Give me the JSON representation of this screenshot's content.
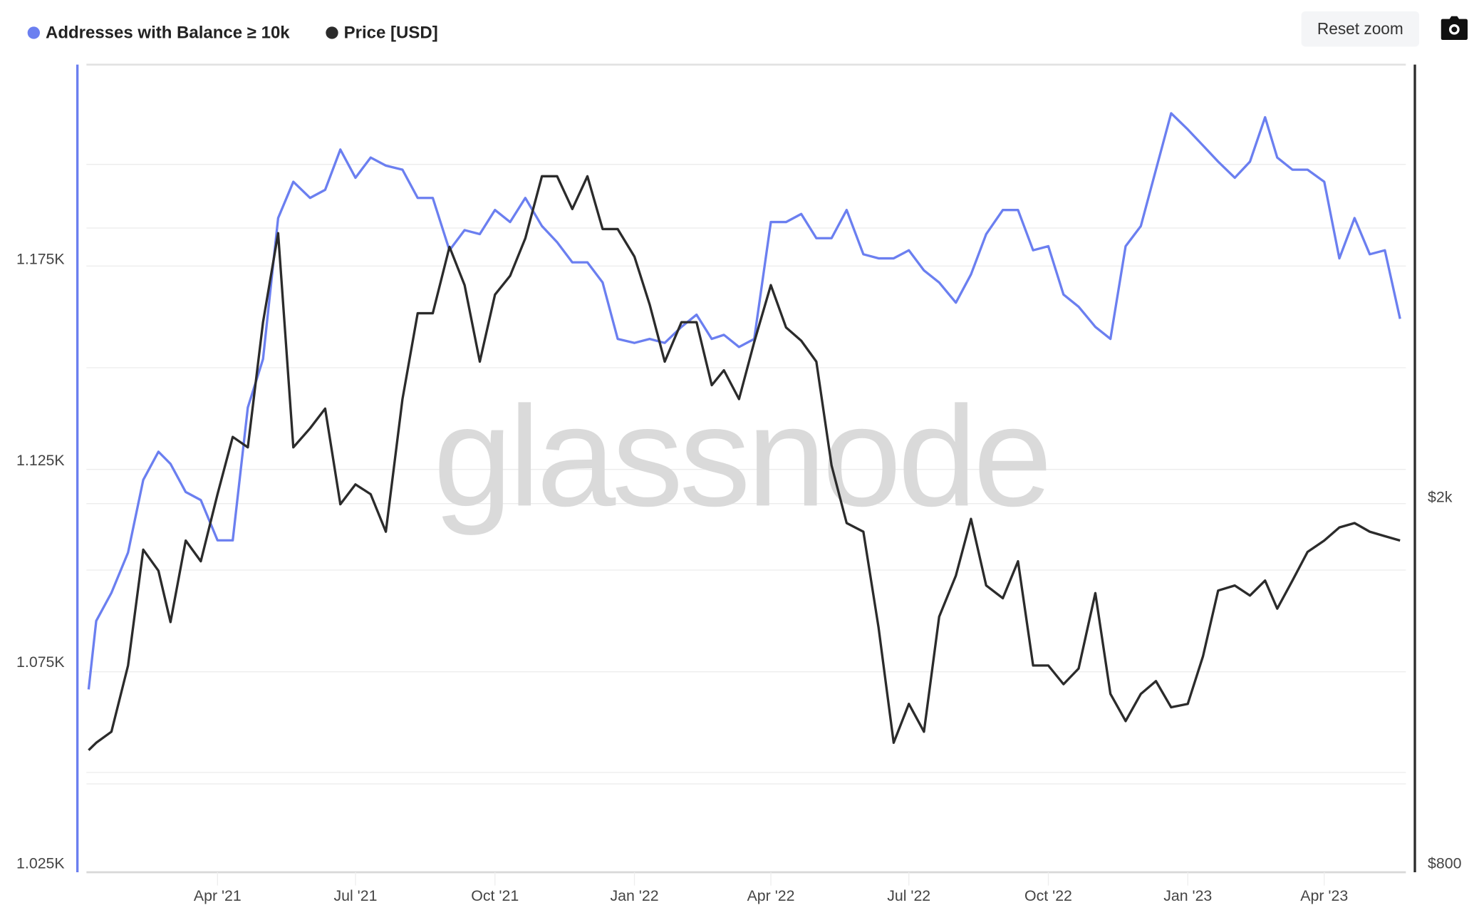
{
  "toolbar": {
    "reset_zoom_label": "Reset zoom",
    "camera_icon": "camera-icon"
  },
  "watermark": "glassnode",
  "colors": {
    "addresses": "#6b7ff0",
    "price": "#2b2b2b"
  },
  "chart_data": {
    "type": "line",
    "title": "",
    "legend_position": "top-left",
    "grid": true,
    "x": [
      "2021-01-06",
      "2021-01-11",
      "2021-01-21",
      "2021-02-01",
      "2021-02-11",
      "2021-02-21",
      "2021-03-01",
      "2021-03-11",
      "2021-03-21",
      "2021-04-01",
      "2021-04-11",
      "2021-04-21",
      "2021-05-01",
      "2021-05-11",
      "2021-05-21",
      "2021-06-01",
      "2021-06-11",
      "2021-06-21",
      "2021-07-01",
      "2021-07-11",
      "2021-07-21",
      "2021-08-01",
      "2021-08-11",
      "2021-08-21",
      "2021-09-01",
      "2021-09-11",
      "2021-09-21",
      "2021-10-01",
      "2021-10-11",
      "2021-10-21",
      "2021-11-01",
      "2021-11-11",
      "2021-11-21",
      "2021-12-01",
      "2021-12-11",
      "2021-12-21",
      "2022-01-01",
      "2022-01-11",
      "2022-01-21",
      "2022-02-01",
      "2022-02-11",
      "2022-02-21",
      "2022-03-01",
      "2022-03-11",
      "2022-03-21",
      "2022-04-01",
      "2022-04-11",
      "2022-04-21",
      "2022-05-01",
      "2022-05-11",
      "2022-05-21",
      "2022-06-01",
      "2022-06-11",
      "2022-06-21",
      "2022-07-01",
      "2022-07-11",
      "2022-07-21",
      "2022-08-01",
      "2022-08-11",
      "2022-08-21",
      "2022-09-01",
      "2022-09-11",
      "2022-09-21",
      "2022-10-01",
      "2022-10-11",
      "2022-10-21",
      "2022-11-01",
      "2022-11-11",
      "2022-11-21",
      "2022-12-01",
      "2022-12-11",
      "2022-12-21",
      "2023-01-01",
      "2023-01-11",
      "2023-01-21",
      "2023-02-01",
      "2023-02-11",
      "2023-02-21",
      "2023-03-01",
      "2023-03-11",
      "2023-03-21",
      "2023-04-01",
      "2023-04-11",
      "2023-04-21",
      "2023-05-01",
      "2023-05-11",
      "2023-05-21"
    ],
    "series": [
      {
        "name": "Addresses with Balance ≥ 10k",
        "axis": "left",
        "values": [
          1068,
          1085,
          1092,
          1102,
          1120,
          1127,
          1124,
          1117,
          1115,
          1105,
          1105,
          1138,
          1150,
          1185,
          1194,
          1190,
          1192,
          1202,
          1195,
          1200,
          1198,
          1197,
          1190,
          1190,
          1177,
          1182,
          1181,
          1187,
          1184,
          1190,
          1183,
          1179,
          1174,
          1174,
          1169,
          1155,
          1154,
          1155,
          1154,
          1158,
          1161,
          1155,
          1156,
          1153,
          1155,
          1184,
          1184,
          1186,
          1180,
          1180,
          1187,
          1176,
          1175,
          1175,
          1177,
          1172,
          1169,
          1164,
          1171,
          1181,
          1187,
          1187,
          1177,
          1178,
          1166,
          1163,
          1158,
          1155,
          1178,
          1183,
          1197,
          1211,
          1207,
          1203,
          1199,
          1195,
          1199,
          1210,
          1200,
          1197,
          1197,
          1194,
          1175,
          1185,
          1176,
          1177,
          1160
        ]
      },
      {
        "name": "Price [USD]",
        "axis": "right",
        "values": [
          1060,
          1080,
          1110,
          1310,
          1750,
          1660,
          1460,
          1790,
          1700,
          2010,
          2320,
          2260,
          3090,
          3860,
          2260,
          2370,
          2490,
          1960,
          2060,
          2010,
          1830,
          2550,
          3160,
          3160,
          3730,
          3390,
          2800,
          3310,
          3470,
          3810,
          4450,
          4450,
          4100,
          4450,
          3900,
          3900,
          3640,
          3230,
          2800,
          3090,
          3090,
          2640,
          2740,
          2550,
          2940,
          3390,
          3050,
          2950,
          2800,
          2160,
          1870,
          1830,
          1440,
          1080,
          1190,
          1110,
          1480,
          1640,
          1890,
          1600,
          1550,
          1700,
          1310,
          1310,
          1250,
          1300,
          1570,
          1220,
          1140,
          1220,
          1260,
          1180,
          1190,
          1340,
          1580,
          1600,
          1560,
          1620,
          1510,
          1620,
          1740,
          1790,
          1850,
          1870,
          1830,
          1810,
          1790
        ]
      }
    ],
    "x_ticks": [
      "Apr '21",
      "Jul '21",
      "Oct '21",
      "Jan '22",
      "Apr '22",
      "Jul '22",
      "Oct '22",
      "Jan '23",
      "Apr '23"
    ],
    "x_tick_dates": [
      "2021-04-01",
      "2021-07-01",
      "2021-10-01",
      "2022-01-01",
      "2022-04-01",
      "2022-07-01",
      "2022-10-01",
      "2023-01-01",
      "2023-04-01"
    ],
    "y_left": {
      "ticks": [
        "1.025K",
        "1.075K",
        "1.125K",
        "1.175K"
      ],
      "tick_values": [
        1025,
        1075,
        1125,
        1175
      ],
      "scale": "linear"
    },
    "y_right": {
      "ticks": [
        "$800",
        "$2k"
      ],
      "tick_values": [
        800,
        2000
      ],
      "scale": "log"
    }
  }
}
